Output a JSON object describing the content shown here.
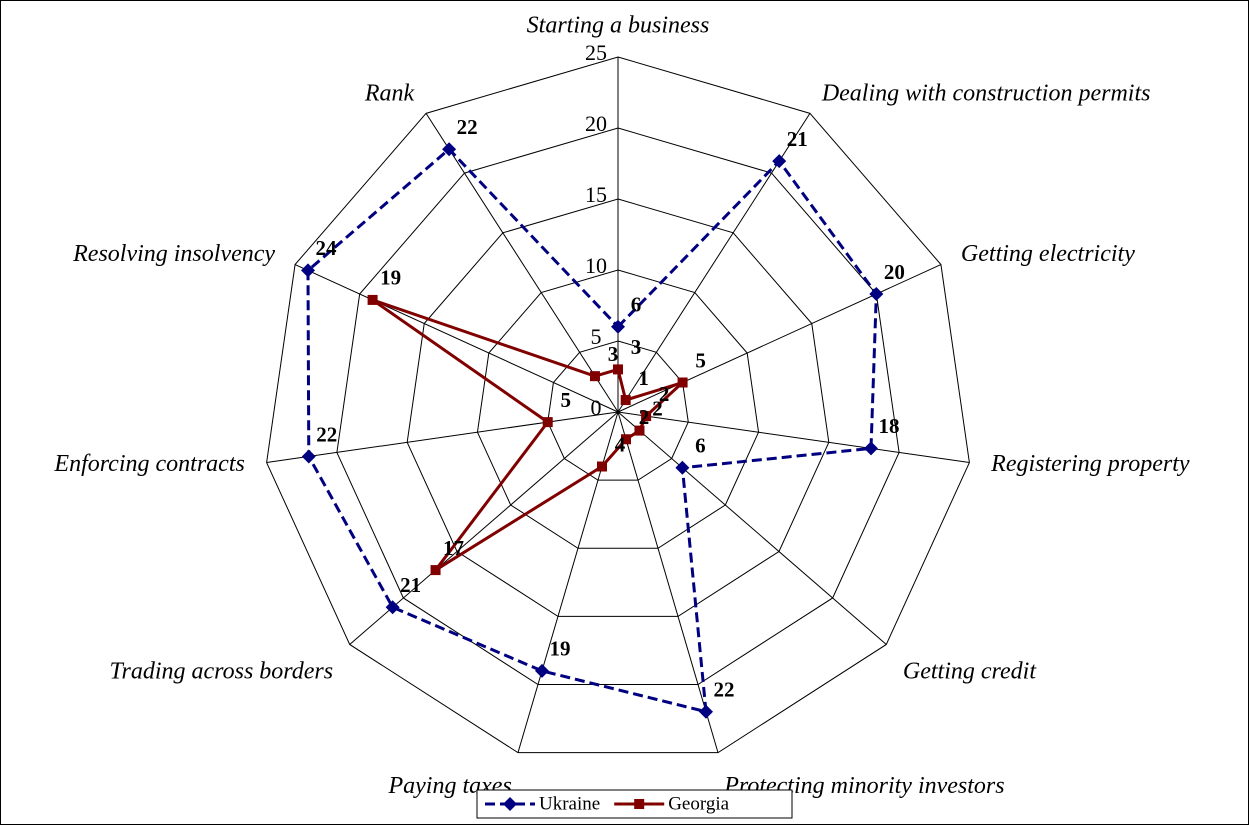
{
  "chart_data": {
    "type": "radar",
    "categories": [
      "Starting a business",
      "Dealing with construction permits",
      "Getting electricity",
      "Registering property",
      "Getting credit",
      "Protecting minority investors",
      "Paying taxes",
      "Trading across borders",
      "Enforcing contracts",
      "Resolving insolvency",
      "Rank"
    ],
    "series": [
      {
        "name": "Ukraine",
        "color": "#000080",
        "dashed": true,
        "marker": "diamond",
        "values": [
          6,
          21,
          20,
          18,
          6,
          22,
          19,
          21,
          22,
          24,
          22
        ]
      },
      {
        "name": "Georgia",
        "color": "#800000",
        "dashed": false,
        "marker": "square",
        "values": [
          3,
          1,
          5,
          2,
          2,
          2,
          4,
          17,
          5,
          19,
          3
        ]
      }
    ],
    "rlim": [
      0,
      25
    ],
    "rticks": [
      0,
      5,
      10,
      15,
      20,
      25
    ],
    "grid": true,
    "legend": "bottom"
  }
}
